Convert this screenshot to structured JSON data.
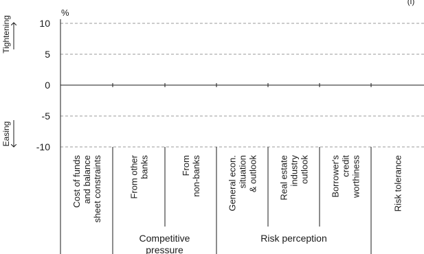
{
  "chart_data": {
    "type": "bar",
    "unit_label": "%",
    "corner_label": "(i)",
    "yticks": [
      10,
      5,
      0,
      -5,
      -10
    ],
    "ylim": [
      -10,
      10
    ],
    "grid": true,
    "categories": [
      "Cost of funds and balance sheet constraints",
      "From other banks",
      "From non-banks",
      "General econ. situation & outlook",
      "Real estate industry outlook",
      "Borrower's credit worthiness",
      "Risk tolerance"
    ],
    "category_lines": [
      [
        "Cost of funds",
        "and balance",
        "sheet constraints"
      ],
      [
        "From other",
        "banks"
      ],
      [
        "From",
        "non-banks"
      ],
      [
        "General econ.",
        "situation",
        "& outlook"
      ],
      [
        "Real estate",
        "industry",
        "outlook"
      ],
      [
        "Borrower's",
        "credit",
        "worthiness"
      ],
      [
        "Risk tolerance"
      ]
    ],
    "groups": [
      {
        "lines": [
          "Competitive",
          "pressure"
        ],
        "span": [
          1,
          2
        ]
      },
      {
        "lines": [
          "Risk perception"
        ],
        "span": [
          3,
          5
        ]
      }
    ],
    "direction_labels": {
      "up": "Tightening",
      "down": "Easing"
    },
    "values": [
      0,
      0,
      0,
      0,
      0,
      0,
      0
    ]
  }
}
